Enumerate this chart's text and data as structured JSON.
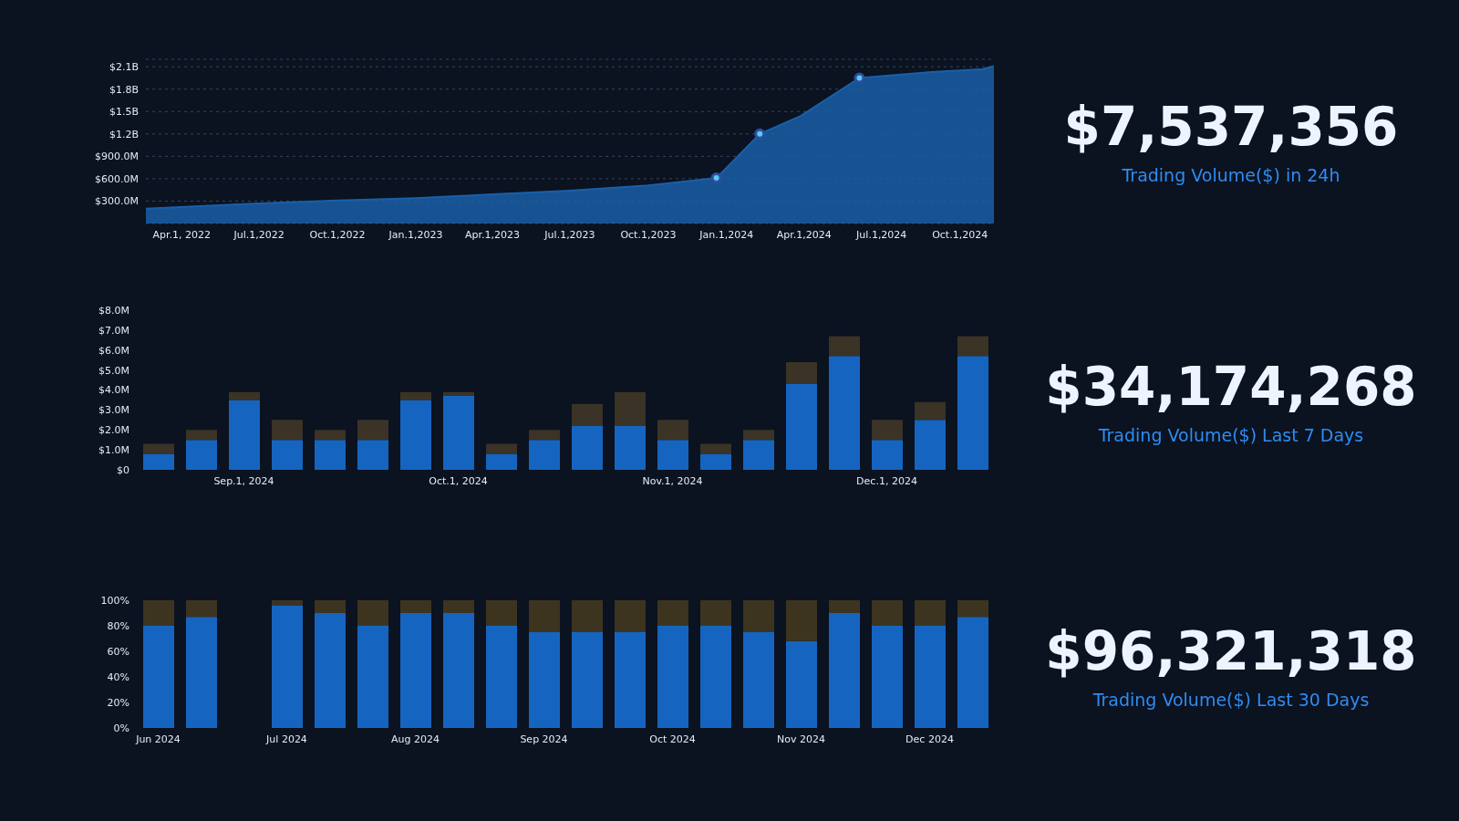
{
  "chart_data": [
    {
      "type": "area",
      "grid": "y",
      "ylim": [
        0,
        2200000000
      ],
      "yticks": [
        {
          "value": 300000000,
          "label": "$300.0M"
        },
        {
          "value": 600000000,
          "label": "$600.0M"
        },
        {
          "value": 900000000,
          "label": "$900.0M"
        },
        {
          "value": 1200000000,
          "label": "$1.2B"
        },
        {
          "value": 1500000000,
          "label": "$1.5B"
        },
        {
          "value": 1800000000,
          "label": "$1.8B"
        },
        {
          "value": 2100000000,
          "label": "$2.1B"
        }
      ],
      "xlim": [
        "2022-02-18",
        "2024-11-10"
      ],
      "xticks": [
        {
          "value": "2022-04-01",
          "label": "Apr.1, 2022"
        },
        {
          "value": "2022-07-01",
          "label": "Jul.1,2022"
        },
        {
          "value": "2022-10-01",
          "label": "Oct.1,2022"
        },
        {
          "value": "2023-01-01",
          "label": "Jan.1,2023"
        },
        {
          "value": "2023-04-01",
          "label": "Apr.1,2023"
        },
        {
          "value": "2023-07-01",
          "label": "Jul.1,2023"
        },
        {
          "value": "2023-10-01",
          "label": "Oct.1,2023"
        },
        {
          "value": "2024-01-01",
          "label": "Jan.1,2024"
        },
        {
          "value": "2024-04-01",
          "label": "Apr.1,2024"
        },
        {
          "value": "2024-07-01",
          "label": "Jul.1,2024"
        },
        {
          "value": "2024-10-01",
          "label": "Oct.1,2024"
        }
      ],
      "series": [
        {
          "type": "area",
          "color": "#1a5fa8",
          "x": [
            "2022-02-18",
            "2022-07-01",
            "2022-10-01",
            "2023-01-01",
            "2023-04-01",
            "2023-07-01",
            "2023-10-01",
            "2023-12-20",
            "2024-02-09",
            "2024-03-28",
            "2024-06-05",
            "2024-08-28",
            "2024-10-28",
            "2024-11-10"
          ],
          "values": [
            200000000,
            270000000,
            310000000,
            340000000,
            390000000,
            440000000,
            510000000,
            610000000,
            1200000000,
            1440000000,
            1950000000,
            2030000000,
            2070000000,
            2110000000
          ]
        },
        {
          "type": "scatter",
          "color": "#5bc8f5",
          "marker": "circle",
          "x": [
            "2023-12-20",
            "2024-02-09",
            "2024-06-05"
          ],
          "values": [
            610000000,
            1200000000,
            1950000000
          ]
        }
      ]
    },
    {
      "type": "bar",
      "stacked": true,
      "ylim": [
        0,
        8
      ],
      "yticks": [
        {
          "value": 0,
          "label": "$0"
        },
        {
          "value": 1,
          "label": "$1.0M"
        },
        {
          "value": 2,
          "label": "$2.0M"
        },
        {
          "value": 3,
          "label": "$3.0M"
        },
        {
          "value": 4,
          "label": "$4.0M"
        },
        {
          "value": 5,
          "label": "$5.0M"
        },
        {
          "value": 6,
          "label": "$6.0M"
        },
        {
          "value": 7,
          "label": "$7.0M"
        },
        {
          "value": 8,
          "label": "$8.0M"
        }
      ],
      "categories": [
        null,
        null,
        "Sep.1, 2024",
        null,
        null,
        null,
        null,
        "Oct.1, 2024",
        null,
        null,
        null,
        null,
        "Nov.1, 2024",
        null,
        null,
        null,
        null,
        "Dec.1, 2024",
        null,
        null
      ],
      "series": [
        {
          "color": "#1565c0",
          "values": [
            0.8,
            1.5,
            3.5,
            1.5,
            1.5,
            1.5,
            3.5,
            3.7,
            0.8,
            1.5,
            2.2,
            2.2,
            1.5,
            0.8,
            1.5,
            4.3,
            5.7,
            1.5,
            2.5,
            5.7
          ]
        },
        {
          "color": "#3a3326",
          "values": [
            0.5,
            0.5,
            0.4,
            1.0,
            0.5,
            1.0,
            0.4,
            0.2,
            0.5,
            0.5,
            1.1,
            1.7,
            1.0,
            0.5,
            0.5,
            1.1,
            1.0,
            1.0,
            0.9,
            1.0
          ]
        }
      ]
    },
    {
      "type": "bar",
      "stacked": true,
      "ylim": [
        0,
        100
      ],
      "yticks": [
        {
          "value": 0,
          "label": "0%"
        },
        {
          "value": 20,
          "label": "20%"
        },
        {
          "value": 40,
          "label": "40%"
        },
        {
          "value": 60,
          "label": "60%"
        },
        {
          "value": 80,
          "label": "80%"
        },
        {
          "value": 100,
          "label": "100%"
        }
      ],
      "categories": [
        "Jun 2024",
        null,
        null,
        "Jul 2024",
        null,
        null,
        "Aug 2024",
        null,
        null,
        "Sep 2024",
        null,
        null,
        "Oct 2024",
        null,
        null,
        "Nov 2024",
        null,
        null,
        "Dec 2024",
        null
      ],
      "series": [
        {
          "color": "#1565c0",
          "values": [
            80,
            87,
            null,
            96,
            90,
            80,
            90,
            90,
            80,
            75,
            75,
            75,
            80,
            80,
            75,
            68,
            90,
            80,
            80,
            87
          ]
        },
        {
          "color": "#3d3420",
          "values": [
            20,
            13,
            null,
            4,
            10,
            20,
            10,
            10,
            20,
            25,
            25,
            25,
            20,
            20,
            25,
            32,
            10,
            20,
            20,
            13
          ]
        }
      ]
    },
    {
      "type": "other",
      "title": "$7,537,356",
      "subtitle": "Trading Volume($) in 24h"
    },
    {
      "type": "other",
      "title": "$34,174,268",
      "subtitle": "Trading Volume($) Last 7 Days"
    },
    {
      "type": "other",
      "title": "$96,321,318",
      "subtitle": "Trading Volume($) Last 30 Days"
    }
  ]
}
